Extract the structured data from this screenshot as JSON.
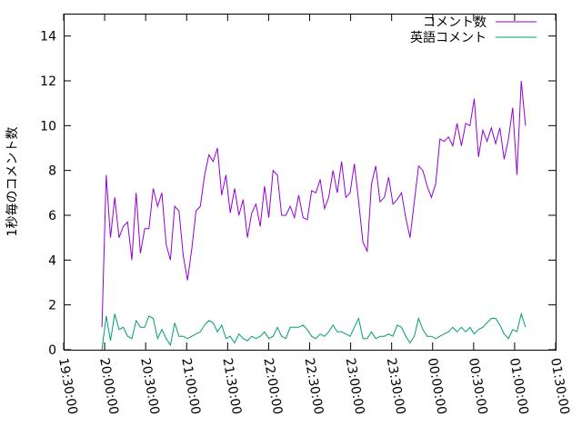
{
  "chart_data": {
    "type": "line",
    "title": "",
    "xlabel": "",
    "ylabel": "1秒毎のコメント数",
    "ylim": [
      0,
      15
    ],
    "xlim": [
      "19:30:00",
      "01:30:00"
    ],
    "grid": false,
    "legend_position": "top-right",
    "yticks": [
      "0",
      "2",
      "4",
      "6",
      "8",
      "10",
      "12",
      "14"
    ],
    "xticks": [
      "19:30:00",
      "20:00:00",
      "20:30:00",
      "21:00:00",
      "21:30:00",
      "22:00:00",
      "22:30:00",
      "23:00:00",
      "23:30:00",
      "00:00:00",
      "00:30:00",
      "01:00:00",
      "01:30:00"
    ],
    "x_start": "19:58:00",
    "x_end": "01:08:00",
    "series": [
      {
        "name": "コメント数",
        "color": "#9400d3",
        "values": [
          1.0,
          7.8,
          5.0,
          6.8,
          5.0,
          5.5,
          5.7,
          4.0,
          7.0,
          4.3,
          5.4,
          5.4,
          7.2,
          6.4,
          7.0,
          4.7,
          4.0,
          6.4,
          6.2,
          4.2,
          3.1,
          4.5,
          6.2,
          6.4,
          7.8,
          8.7,
          8.4,
          9.0,
          6.9,
          7.8,
          6.1,
          7.2,
          6.0,
          6.7,
          5.0,
          6.1,
          6.5,
          5.5,
          7.3,
          5.9,
          8.0,
          7.8,
          6.0,
          6.0,
          6.4,
          5.9,
          6.9,
          5.9,
          5.8,
          7.1,
          7.0,
          7.6,
          6.3,
          6.8,
          8.0,
          7.0,
          8.4,
          6.8,
          7.0,
          8.3,
          6.6,
          4.8,
          4.4,
          7.4,
          8.2,
          6.6,
          6.8,
          7.7,
          6.5,
          6.7,
          7.0,
          5.9,
          5.0,
          6.6,
          8.2,
          8.0,
          7.3,
          6.8,
          7.4,
          9.4,
          9.3,
          9.5,
          9.1,
          10.1,
          9.1,
          10.1,
          10.0,
          11.2,
          8.6,
          9.8,
          9.3,
          9.9,
          9.2,
          9.9,
          8.5,
          9.4,
          10.8,
          7.8,
          12.0,
          10.0
        ]
      },
      {
        "name": "英語コメント",
        "color": "#009e73",
        "values": [
          0.0,
          1.5,
          0.4,
          1.6,
          0.9,
          1.0,
          0.6,
          0.5,
          1.3,
          1.0,
          1.0,
          1.5,
          1.4,
          0.5,
          0.9,
          0.5,
          0.2,
          1.2,
          0.6,
          0.6,
          0.5,
          0.6,
          0.7,
          0.8,
          1.1,
          1.3,
          1.2,
          0.8,
          1.1,
          0.5,
          0.6,
          0.3,
          0.7,
          0.5,
          0.4,
          0.6,
          0.5,
          0.6,
          0.8,
          0.5,
          0.6,
          1.0,
          0.6,
          0.5,
          1.0,
          1.0,
          1.0,
          1.1,
          0.9,
          0.6,
          0.5,
          0.7,
          0.6,
          0.8,
          1.1,
          0.8,
          0.8,
          0.7,
          0.6,
          1.0,
          1.4,
          0.5,
          0.5,
          0.8,
          0.5,
          0.6,
          0.6,
          0.7,
          0.6,
          1.1,
          1.0,
          0.6,
          0.3,
          0.6,
          1.4,
          0.9,
          0.6,
          0.6,
          0.5,
          0.6,
          0.7,
          0.8,
          1.0,
          0.8,
          1.0,
          0.8,
          1.0,
          0.7,
          0.9,
          1.0,
          1.2,
          1.4,
          1.4,
          1.1,
          0.7,
          0.5,
          0.9,
          0.8,
          1.6,
          1.0
        ]
      }
    ]
  }
}
